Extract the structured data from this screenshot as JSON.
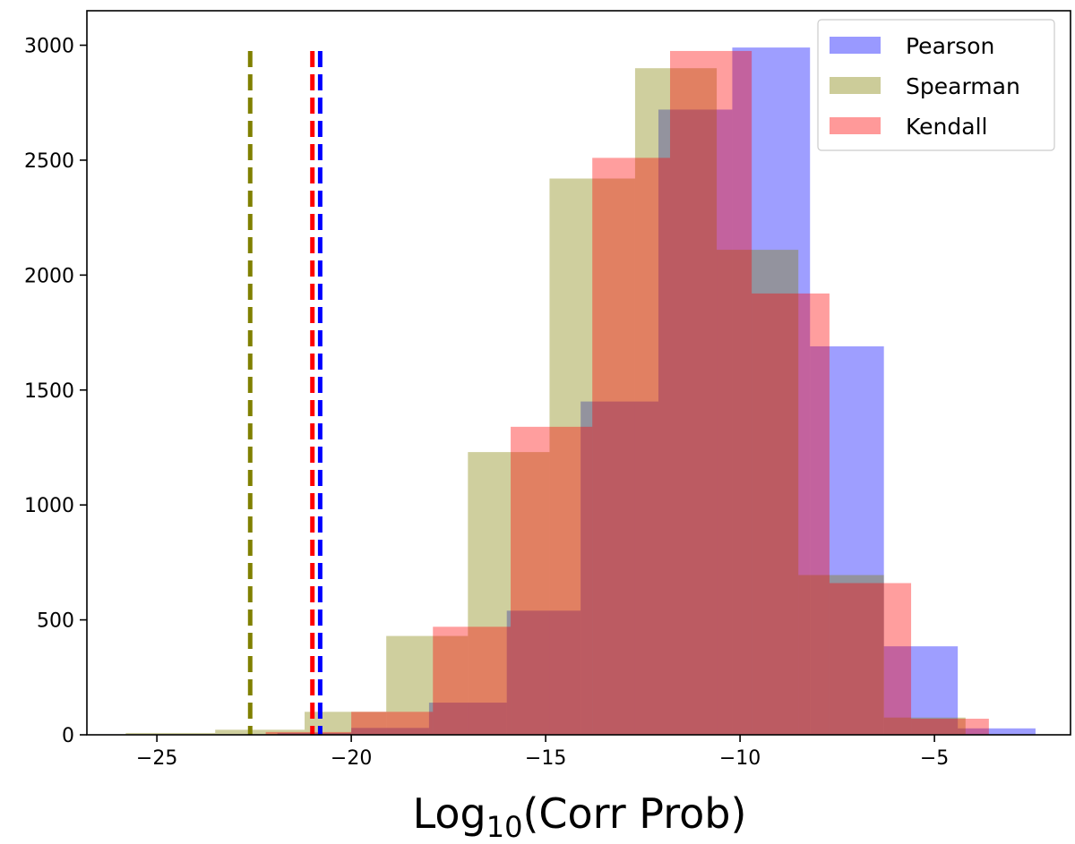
{
  "chart_data": {
    "type": "histogram",
    "title": "",
    "xlabel_main": "Log",
    "xlabel_sub": "10",
    "xlabel_rest": "(Corr Prob)",
    "ylabel": "",
    "xlim": [
      -26.8,
      -1.5
    ],
    "ylim": [
      0,
      3150
    ],
    "x_ticks": [
      -25,
      -20,
      -15,
      -10,
      -5
    ],
    "x_tick_labels": [
      "−25",
      "−20",
      "−15",
      "−10",
      "−5"
    ],
    "y_ticks": [
      0,
      500,
      1000,
      1500,
      2000,
      2500,
      3000
    ],
    "y_tick_labels": [
      "0",
      "500",
      "1000",
      "1500",
      "2000",
      "2500",
      "3000"
    ],
    "legend_position": "top-right",
    "series": [
      {
        "name": "Pearson",
        "color": "#0000ff",
        "alpha": 0.38,
        "legend_color": "#9999ff",
        "bins": [
          {
            "x0": -23.8,
            "x1": -21.9,
            "count": 2
          },
          {
            "x0": -21.9,
            "x1": -20.0,
            "count": 8
          },
          {
            "x0": -20.0,
            "x1": -18.0,
            "count": 30
          },
          {
            "x0": -18.0,
            "x1": -16.0,
            "count": 140
          },
          {
            "x0": -16.0,
            "x1": -14.1,
            "count": 540
          },
          {
            "x0": -14.1,
            "x1": -12.1,
            "count": 1450
          },
          {
            "x0": -12.1,
            "x1": -10.2,
            "count": 2720
          },
          {
            "x0": -10.2,
            "x1": -8.2,
            "count": 2990
          },
          {
            "x0": -8.2,
            "x1": -6.3,
            "count": 1690
          },
          {
            "x0": -6.3,
            "x1": -4.4,
            "count": 385
          },
          {
            "x0": -4.4,
            "x1": -2.4,
            "count": 28
          }
        ],
        "median_line": -20.8,
        "line_color": "#0000ff"
      },
      {
        "name": "Spearman",
        "color": "#808000",
        "alpha": 0.38,
        "legend_color": "#cccc99",
        "bins": [
          {
            "x0": -25.8,
            "x1": -23.5,
            "count": 8
          },
          {
            "x0": -23.5,
            "x1": -21.2,
            "count": 22
          },
          {
            "x0": -21.2,
            "x1": -19.1,
            "count": 100
          },
          {
            "x0": -19.1,
            "x1": -17.0,
            "count": 430
          },
          {
            "x0": -17.0,
            "x1": -14.9,
            "count": 1230
          },
          {
            "x0": -14.9,
            "x1": -12.7,
            "count": 2420
          },
          {
            "x0": -12.7,
            "x1": -10.6,
            "count": 2900
          },
          {
            "x0": -10.6,
            "x1": -8.5,
            "count": 2110
          },
          {
            "x0": -8.5,
            "x1": -6.3,
            "count": 695
          },
          {
            "x0": -6.3,
            "x1": -4.2,
            "count": 75
          },
          {
            "x0": -4.2,
            "x1": -3.5,
            "count": 2
          }
        ],
        "median_line": -22.6,
        "line_color": "#808000"
      },
      {
        "name": "Kendall",
        "color": "#ff0000",
        "alpha": 0.38,
        "legend_color": "#ff9999",
        "bins": [
          {
            "x0": -22.2,
            "x1": -20.0,
            "count": 12
          },
          {
            "x0": -20.0,
            "x1": -17.9,
            "count": 100
          },
          {
            "x0": -17.9,
            "x1": -15.9,
            "count": 470
          },
          {
            "x0": -15.9,
            "x1": -13.8,
            "count": 1340
          },
          {
            "x0": -13.8,
            "x1": -11.8,
            "count": 2510
          },
          {
            "x0": -11.8,
            "x1": -9.7,
            "count": 2975
          },
          {
            "x0": -9.7,
            "x1": -7.7,
            "count": 1920
          },
          {
            "x0": -7.7,
            "x1": -5.6,
            "count": 660
          },
          {
            "x0": -5.6,
            "x1": -3.6,
            "count": 70
          }
        ],
        "median_line": -21.0,
        "line_color": "#ff0000"
      }
    ]
  }
}
